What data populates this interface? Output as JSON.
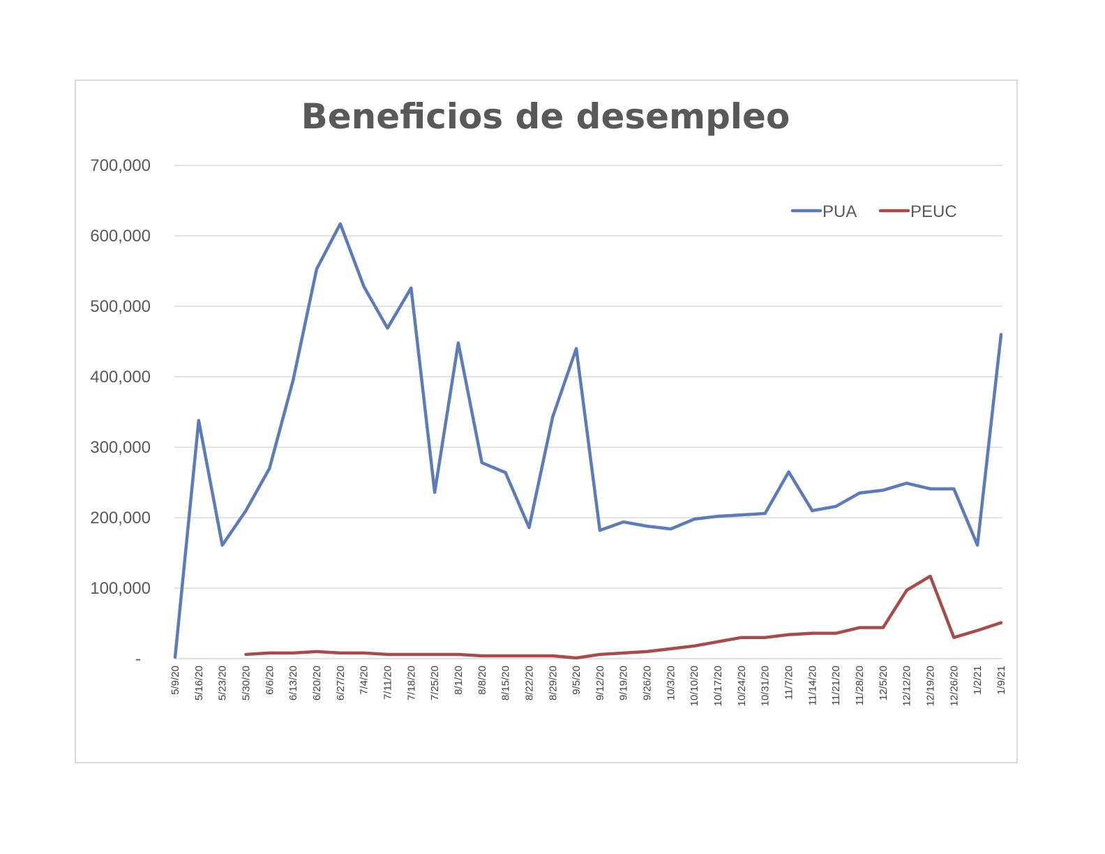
{
  "chart_data": {
    "type": "line",
    "title": "Beneficios de desempleo",
    "xlabel": "",
    "ylabel": "",
    "ylim": [
      0,
      700000
    ],
    "y_ticks": [
      "-",
      "100,000",
      "200,000",
      "300,000",
      "400,000",
      "500,000",
      "600,000",
      "700,000"
    ],
    "y_tick_values": [
      0,
      100000,
      200000,
      300000,
      400000,
      500000,
      600000,
      700000
    ],
    "grid": true,
    "legend_position": "top-right",
    "categories": [
      "5/9/20",
      "5/16/20",
      "5/23/20",
      "5/30/20",
      "6/6/20",
      "6/13/20",
      "6/20/20",
      "6/27/20",
      "7/4/20",
      "7/11/20",
      "7/18/20",
      "7/25/20",
      "8/1/20",
      "8/8/20",
      "8/15/20",
      "8/22/20",
      "8/29/20",
      "9/5/20",
      "9/12/20",
      "9/19/20",
      "9/26/20",
      "10/3/20",
      "10/10/20",
      "10/17/20",
      "10/24/20",
      "10/31/20",
      "11/7/20",
      "11/14/20",
      "11/21/20",
      "11/28/20",
      "12/5/20",
      "12/12/20",
      "12/19/20",
      "12/26/20",
      "1/2/21",
      "1/9/21"
    ],
    "series": [
      {
        "name": "PUA",
        "color": "#5b7cb8",
        "values": [
          2000,
          338000,
          161000,
          210000,
          270000,
          395000,
          553000,
          617000,
          528000,
          469000,
          526000,
          236000,
          448000,
          278000,
          264000,
          186000,
          343000,
          440000,
          182000,
          194000,
          188000,
          184000,
          198000,
          202000,
          204000,
          206000,
          265000,
          210000,
          216000,
          235000,
          239000,
          249000,
          241000,
          241000,
          161000,
          460000
        ]
      },
      {
        "name": "PEUC",
        "color": "#a84c4a",
        "values": [
          null,
          null,
          null,
          6000,
          8000,
          8000,
          10000,
          8000,
          8000,
          6000,
          6000,
          6000,
          6000,
          4000,
          4000,
          4000,
          4000,
          1000,
          6000,
          8000,
          10000,
          14000,
          18000,
          24000,
          30000,
          30000,
          34000,
          36000,
          36000,
          44000,
          44000,
          97000,
          117000,
          30000,
          40000,
          51000
        ]
      }
    ]
  }
}
